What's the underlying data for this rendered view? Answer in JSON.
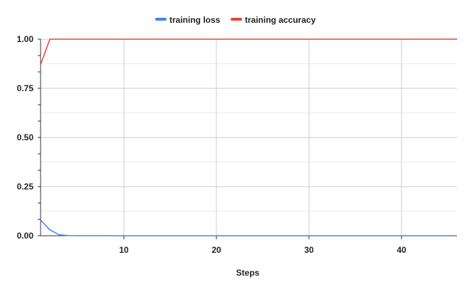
{
  "chart_data": {
    "type": "line",
    "xlabel": "Steps",
    "ylabel": "",
    "xlim": [
      1,
      46
    ],
    "ylim": [
      0,
      1
    ],
    "x_ticks": [
      10,
      20,
      30,
      40
    ],
    "x_tick_labels": [
      "10",
      "20",
      "30",
      "40"
    ],
    "y_ticks": [
      0,
      0.25,
      0.5,
      0.75,
      1
    ],
    "y_tick_labels": [
      "0.00",
      "0.25",
      "0.50",
      "0.75",
      "1.00"
    ],
    "grid": true,
    "legend_position": "top",
    "series": [
      {
        "name": "training loss",
        "color": "#4285f4",
        "x": [
          1,
          2,
          3,
          4,
          5,
          6,
          7,
          8,
          9,
          10,
          11,
          12,
          13,
          14,
          15,
          16,
          17,
          18,
          19,
          20,
          21,
          22,
          23,
          24,
          25,
          26,
          27,
          28,
          29,
          30,
          31,
          32,
          33,
          34,
          35,
          36,
          37,
          38,
          39,
          40,
          41,
          42,
          43,
          44,
          45,
          46
        ],
        "values": [
          0.08,
          0.03,
          0.005,
          0.001,
          0.0005,
          0.0003,
          0.0002,
          0.0002,
          0.0001,
          0.0001,
          0.0001,
          0.0001,
          0.0001,
          0.0001,
          0.0001,
          0.0001,
          0.0001,
          0.0001,
          0.0001,
          0.0001,
          0.0001,
          0.0001,
          0.0001,
          0.0001,
          0.0001,
          0.0001,
          0.0001,
          0.0001,
          0.0001,
          0.0001,
          0.0001,
          0.0001,
          0.0001,
          0.0001,
          0.0001,
          0.0001,
          0.0001,
          0.0001,
          0.0001,
          0.0001,
          0.0001,
          0.0001,
          0.0001,
          0.0001,
          0.0001,
          0.0001
        ]
      },
      {
        "name": "training accuracy",
        "color": "#ea4335",
        "x": [
          1,
          2,
          3,
          4,
          5,
          6,
          7,
          8,
          9,
          10,
          11,
          12,
          13,
          14,
          15,
          16,
          17,
          18,
          19,
          20,
          21,
          22,
          23,
          24,
          25,
          26,
          27,
          28,
          29,
          30,
          31,
          32,
          33,
          34,
          35,
          36,
          37,
          38,
          39,
          40,
          41,
          42,
          43,
          44,
          45,
          46
        ],
        "values": [
          0.87,
          1,
          1,
          1,
          1,
          1,
          1,
          1,
          1,
          1,
          1,
          1,
          1,
          1,
          1,
          1,
          1,
          1,
          1,
          1,
          1,
          1,
          1,
          1,
          1,
          1,
          1,
          1,
          1,
          1,
          1,
          1,
          1,
          1,
          1,
          1,
          1,
          1,
          1,
          1,
          1,
          1,
          1,
          1,
          1,
          1
        ]
      }
    ]
  }
}
